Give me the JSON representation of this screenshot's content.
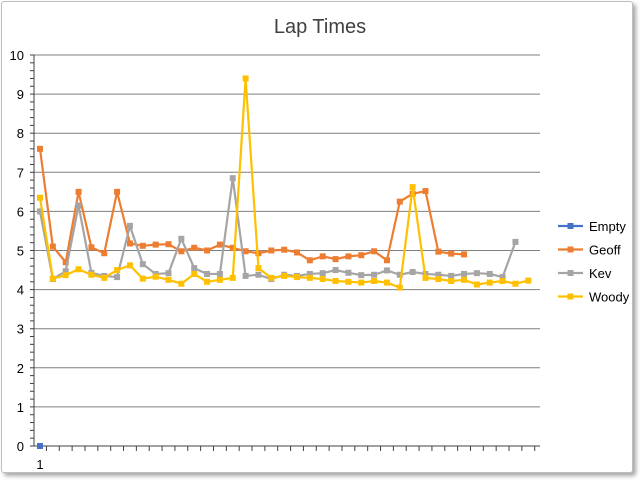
{
  "chart_data": {
    "type": "line",
    "title": "Lap Times",
    "xlabel": "",
    "ylabel": "",
    "ylim": [
      0,
      10
    ],
    "y_ticks": [
      0,
      1,
      2,
      3,
      4,
      5,
      6,
      7,
      8,
      9,
      10
    ],
    "x_ticks": [
      {
        "x": 1,
        "label": "1"
      }
    ],
    "x_count": 39,
    "grid": true,
    "legend_position": "right",
    "series": [
      {
        "name": "Empty",
        "color": "#4472C4",
        "values": [
          0
        ]
      },
      {
        "name": "Geoff",
        "color": "#ED7D31",
        "values": [
          7.6,
          5.1,
          4.7,
          6.5,
          5.08,
          4.93,
          6.5,
          5.18,
          5.12,
          5.15,
          5.16,
          4.98,
          5.07,
          5.0,
          5.15,
          5.07,
          4.98,
          4.93,
          5.0,
          5.02,
          4.95,
          4.75,
          4.85,
          4.78,
          4.85,
          4.88,
          4.98,
          4.75,
          6.25,
          6.45,
          6.52,
          4.97,
          4.92,
          4.9
        ]
      },
      {
        "name": "Kev",
        "color": "#A5A5A5",
        "values": [
          6.0,
          4.27,
          4.47,
          6.15,
          4.43,
          4.35,
          4.32,
          5.63,
          4.65,
          4.4,
          4.42,
          5.3,
          4.55,
          4.4,
          4.4,
          6.85,
          4.35,
          4.38,
          4.27,
          4.38,
          4.35,
          4.4,
          4.42,
          4.5,
          4.43,
          4.37,
          4.38,
          4.49,
          4.38,
          4.45,
          4.4,
          4.38,
          4.35,
          4.4,
          4.42,
          4.4,
          4.32,
          5.22
        ]
      },
      {
        "name": "Woody",
        "color": "#FFC000",
        "values": [
          6.35,
          4.28,
          4.37,
          4.52,
          4.38,
          4.3,
          4.5,
          4.62,
          4.28,
          4.33,
          4.25,
          4.15,
          4.4,
          4.2,
          4.25,
          4.3,
          9.4,
          4.55,
          4.3,
          4.35,
          4.32,
          4.3,
          4.27,
          4.22,
          4.2,
          4.18,
          4.22,
          4.18,
          4.05,
          6.62,
          4.3,
          4.27,
          4.22,
          4.25,
          4.13,
          4.18,
          4.22,
          4.15,
          4.23
        ]
      }
    ]
  }
}
